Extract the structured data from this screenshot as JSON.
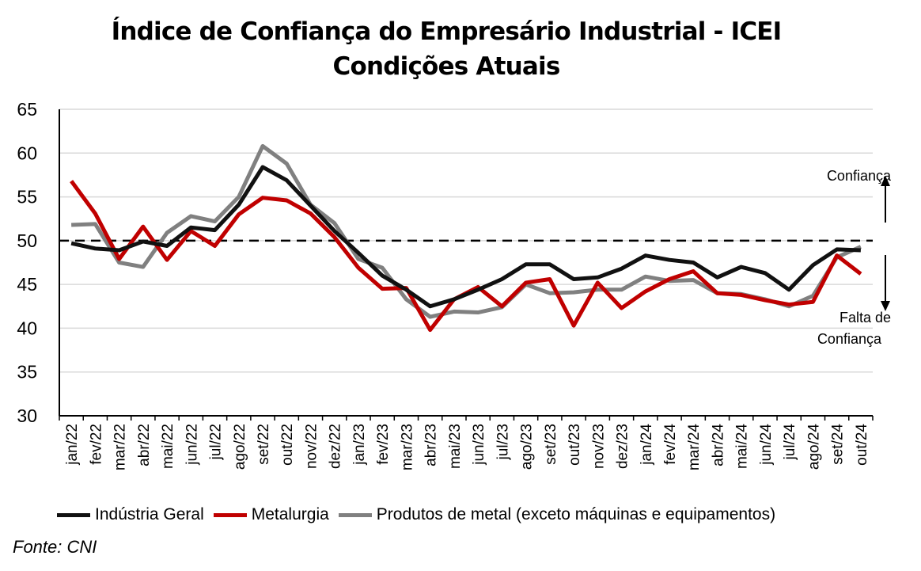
{
  "title_line1": "Índice de Confiança do Empresário Industrial - ICEI",
  "title_line2": "Condições Atuais",
  "source": "Fonte: CNI",
  "annotations": {
    "up": "Confiança",
    "down_line1": "Falta de",
    "down_line2": "Confiança"
  },
  "chart_data": {
    "type": "line",
    "ylim": [
      30,
      65
    ],
    "yticks": [
      30,
      35,
      40,
      45,
      50,
      55,
      60,
      65
    ],
    "grid": true,
    "reference_line": 50,
    "legend_position": "bottom",
    "categories": [
      "jan/22",
      "fev/22",
      "mar/22",
      "abr/22",
      "mai/22",
      "jun/22",
      "jul/22",
      "ago/22",
      "set/22",
      "out/22",
      "nov/22",
      "dez/22",
      "jan/23",
      "fev/23",
      "mar/23",
      "abr/23",
      "mai/23",
      "jun/23",
      "jul/23",
      "ago/23",
      "set/23",
      "out/23",
      "nov/23",
      "dez/23",
      "jan/24",
      "fev/24",
      "mar/24",
      "abr/24",
      "mai/24",
      "jun/24",
      "jul/24",
      "ago/24",
      "set/24",
      "out/24"
    ],
    "series": [
      {
        "name": "Indústria Geral",
        "color": "#111111",
        "values": [
          49.7,
          49.1,
          48.9,
          49.9,
          49.4,
          51.5,
          51.2,
          54.1,
          58.4,
          56.9,
          54.0,
          51.1,
          48.6,
          46.0,
          44.4,
          42.5,
          43.3,
          44.4,
          45.6,
          47.3,
          47.3,
          45.6,
          45.8,
          46.8,
          48.3,
          47.8,
          47.5,
          45.8,
          47.0,
          46.3,
          44.4,
          47.2,
          49.0,
          48.9
        ]
      },
      {
        "name": "Metalurgia",
        "color": "#C00000",
        "values": [
          56.8,
          53.1,
          47.9,
          51.6,
          47.8,
          51.1,
          49.4,
          53.0,
          54.9,
          54.6,
          53.1,
          50.4,
          46.9,
          44.5,
          44.6,
          39.8,
          43.3,
          44.7,
          42.5,
          45.2,
          45.6,
          40.3,
          45.2,
          42.3,
          44.2,
          45.6,
          46.5,
          44.0,
          43.8,
          43.2,
          42.7,
          43.0,
          48.3,
          46.2
        ]
      },
      {
        "name": "Produtos de metal (exceto máquinas e equipamentos)",
        "color": "#808080",
        "values": [
          51.8,
          51.9,
          47.5,
          47.0,
          50.9,
          52.8,
          52.2,
          55.0,
          60.8,
          58.8,
          54.1,
          52.0,
          47.9,
          46.9,
          43.3,
          41.3,
          41.9,
          41.8,
          42.4,
          45.0,
          44.0,
          44.1,
          44.4,
          44.4,
          45.9,
          45.4,
          45.5,
          44.0,
          43.9,
          43.3,
          42.5,
          43.7,
          48.1,
          49.3
        ]
      }
    ]
  }
}
